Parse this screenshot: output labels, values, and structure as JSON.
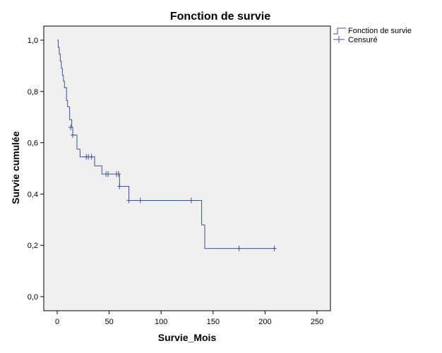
{
  "chart_data": {
    "type": "line",
    "title": "Fonction de survie",
    "xlabel": "Survie_Mois",
    "ylabel": "Survie cumulée",
    "xlim": [
      0,
      260
    ],
    "ylim": [
      0,
      1.0
    ],
    "x_ticks": [
      0,
      50,
      100,
      150,
      200,
      250
    ],
    "x_tick_labels": [
      "0",
      "50",
      "100",
      "150",
      "200",
      "250"
    ],
    "y_ticks": [
      0,
      0.2,
      0.4,
      0.6,
      0.8,
      1.0
    ],
    "y_tick_labels": [
      "0,0",
      "0,2",
      "0,4",
      "0,6",
      "0,8",
      "1,0"
    ],
    "grid": false,
    "legend_position": "top-right",
    "colors": {
      "line": "#3b4f9e",
      "plot_background": "#f0f0f0",
      "axis": "#000000"
    },
    "series": [
      {
        "name": "Fonction de survie",
        "steps": [
          {
            "x": 0,
            "y": 1.0
          },
          {
            "x": 1,
            "y": 0.972
          },
          {
            "x": 2,
            "y": 0.945
          },
          {
            "x": 3,
            "y": 0.918
          },
          {
            "x": 4,
            "y": 0.89
          },
          {
            "x": 5,
            "y": 0.863
          },
          {
            "x": 6,
            "y": 0.84
          },
          {
            "x": 7,
            "y": 0.815
          },
          {
            "x": 9,
            "y": 0.765
          },
          {
            "x": 10,
            "y": 0.74
          },
          {
            "x": 12,
            "y": 0.69
          },
          {
            "x": 14,
            "y": 0.66
          },
          {
            "x": 15,
            "y": 0.63
          },
          {
            "x": 19,
            "y": 0.575
          },
          {
            "x": 22,
            "y": 0.545
          },
          {
            "x": 36,
            "y": 0.51
          },
          {
            "x": 43,
            "y": 0.478
          },
          {
            "x": 60,
            "y": 0.43
          },
          {
            "x": 69,
            "y": 0.375
          },
          {
            "x": 139,
            "y": 0.28
          },
          {
            "x": 142,
            "y": 0.188
          }
        ],
        "x_end": 210
      },
      {
        "name": "Censuré",
        "points": [
          {
            "x": 13,
            "y": 0.66
          },
          {
            "x": 15,
            "y": 0.63
          },
          {
            "x": 28,
            "y": 0.545
          },
          {
            "x": 30,
            "y": 0.545
          },
          {
            "x": 33,
            "y": 0.545
          },
          {
            "x": 47,
            "y": 0.478
          },
          {
            "x": 49,
            "y": 0.478
          },
          {
            "x": 57,
            "y": 0.478
          },
          {
            "x": 59,
            "y": 0.478
          },
          {
            "x": 60,
            "y": 0.43
          },
          {
            "x": 69,
            "y": 0.375
          },
          {
            "x": 80,
            "y": 0.375
          },
          {
            "x": 129,
            "y": 0.375
          },
          {
            "x": 175,
            "y": 0.188
          },
          {
            "x": 209,
            "y": 0.188
          }
        ]
      }
    ],
    "legend": [
      "Fonction de survie",
      "Censuré"
    ]
  }
}
